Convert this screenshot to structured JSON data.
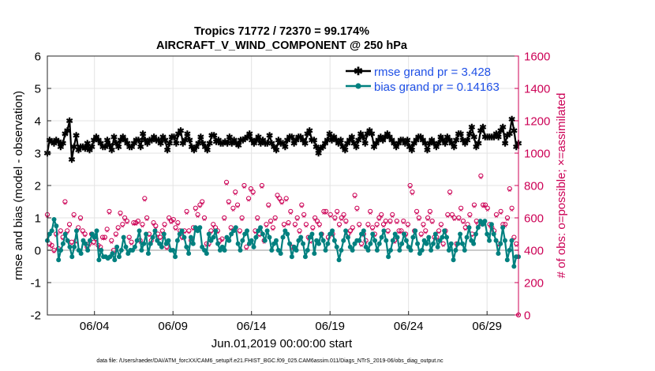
{
  "chart_data": {
    "type": "line",
    "title_line1": "Tropics 71772 / 72370 = 99.174%",
    "title_line2": "AIRCRAFT_V_WIND_COMPONENT @ 250 hPa",
    "ylabel_left": "rmse and bias (model - observation)",
    "ylabel_right": "# of obs: o=possible; ×=assimilated",
    "xlabel": "Jun.01,2019 00:00:00 start",
    "footnote": "data file: /Users/raeder/DAI/ATM_forcXX/CAM6_setup/f.e21.FHIST_BGC.f09_025.CAM6assim.011/Diags_NTrS_2019-06/obs_diag_output.nc",
    "ylim_left": [
      -2,
      6
    ],
    "ylim_right": [
      0,
      1600
    ],
    "xlim_days": [
      0,
      30
    ],
    "yticks_left": [
      "-2",
      "-1",
      "0",
      "1",
      "2",
      "3",
      "4",
      "5",
      "6"
    ],
    "yticks_right": [
      "0",
      "200",
      "400",
      "600",
      "800",
      "1000",
      "1200",
      "1400",
      "1600"
    ],
    "xticks": [
      {
        "day": 3,
        "label": "06/04"
      },
      {
        "day": 8,
        "label": "06/09"
      },
      {
        "day": 13,
        "label": "06/14"
      },
      {
        "day": 18,
        "label": "06/19"
      },
      {
        "day": 23,
        "label": "06/24"
      },
      {
        "day": 28,
        "label": "06/29"
      }
    ],
    "legend": [
      "rmse grand pr = 3.428",
      "bias grand pr = 0.14163"
    ],
    "colors": {
      "rmse": "#000000",
      "bias": "#00807f",
      "obs": "#cc0055",
      "legend_text": "#1f50e6",
      "zero_line": "#bbbbbb",
      "grid": "#e3e3e3"
    },
    "series": [
      {
        "name": "rmse",
        "values": [
          3.0,
          3.4,
          3.35,
          3.3,
          3.4,
          3.35,
          3.2,
          3.3,
          3.6,
          3.7,
          4.0,
          2.8,
          3.2,
          3.55,
          3.1,
          3.2,
          3.2,
          3.15,
          3.3,
          3.1,
          3.2,
          3.4,
          3.5,
          3.4,
          3.3,
          3.2,
          3.2,
          3.4,
          3.25,
          3.1,
          3.5,
          3.3,
          3.2,
          3.4,
          3.5,
          3.4,
          3.3,
          3.2,
          3.2,
          3.3,
          3.4,
          3.4,
          3.2,
          3.6,
          3.4,
          3.3,
          3.4,
          3.4,
          3.5,
          3.4,
          3.4,
          3.3,
          3.5,
          3.4,
          3.1,
          3.3,
          3.5,
          3.5,
          3.3,
          3.6,
          3.7,
          3.3,
          3.4,
          3.6,
          3.4,
          3.2,
          3.1,
          3.2,
          3.3,
          3.5,
          3.3,
          3.2,
          3.1,
          3.3,
          3.55,
          3.55,
          3.35,
          3.4,
          3.3,
          3.3,
          3.35,
          3.3,
          3.5,
          3.3,
          3.4,
          3.3,
          3.25,
          3.4,
          3.4,
          3.45,
          3.5,
          3.6,
          3.4,
          3.3,
          3.4,
          3.5,
          3.3,
          3.4,
          3.3,
          3.3,
          3.55,
          3.3,
          3.2,
          3.1,
          3.4,
          3.3,
          3.3,
          3.2,
          3.4,
          3.5,
          3.5,
          3.3,
          3.4,
          3.5,
          3.5,
          3.4,
          3.3,
          3.6,
          3.7,
          3.4,
          3.4,
          3.2,
          3.0,
          3.15,
          3.2,
          3.3,
          3.4,
          3.6,
          3.4,
          3.5,
          3.4,
          3.3,
          3.4,
          3.2,
          3.1,
          3.3,
          3.4,
          3.5,
          3.3,
          3.2,
          3.4,
          3.6,
          3.5,
          3.3,
          3.6,
          3.7,
          3.6,
          3.2,
          3.3,
          3.4,
          3.5,
          3.4,
          3.5,
          3.6,
          3.5,
          3.4,
          3.3,
          3.2,
          3.3,
          3.4,
          3.4,
          3.3,
          3.4,
          3.2,
          3.1,
          3.3,
          3.4,
          3.5,
          3.5,
          3.4,
          3.3,
          3.1,
          3.3,
          3.4,
          3.3,
          3.2,
          3.3,
          3.5,
          3.4,
          3.3,
          3.5,
          3.4,
          3.3,
          3.2,
          3.4,
          3.6,
          3.6,
          3.4,
          3.3,
          3.4,
          3.6,
          3.8,
          3.5,
          3.2,
          3.3,
          3.7,
          3.8,
          3.5,
          3.5,
          3.5,
          3.5,
          3.5,
          3.6,
          3.5,
          3.7,
          3.8,
          3.3,
          3.55,
          3.6,
          4.05,
          3.7,
          3.2,
          3.3
        ]
      },
      {
        "name": "bias",
        "values": [
          0.3,
          0.5,
          0.6,
          0.95,
          0.75,
          -0.3,
          0.0,
          0.2,
          0.5,
          0.3,
          0.1,
          -0.2,
          0.1,
          0.6,
          0.0,
          -0.1,
          0.3,
          0.2,
          0.0,
          0.3,
          0.5,
          0.4,
          0.6,
          -0.3,
          0.0,
          -0.2,
          -0.2,
          -0.25,
          -0.2,
          -0.1,
          -0.3,
          0.1,
          -0.2,
          0.0,
          0.4,
          0.1,
          -0.1,
          0.0,
          0.0,
          0.1,
          0.3,
          0.6,
          0.0,
          0.2,
          0.5,
          -0.1,
          0.2,
          0.4,
          0.6,
          0.3,
          0.2,
          0.1,
          0.5,
          0.2,
          0.3,
          0.0,
          0.0,
          -0.2,
          0.3,
          0.5,
          0.6,
          0.4,
          0.1,
          -0.1,
          0.4,
          0.2,
          0.7,
          0.6,
          0.7,
          0.1,
          0.0,
          -0.1,
          0.5,
          0.3,
          0.4,
          0.6,
          0.2,
          0.0,
          0.1,
          0.0,
          0.4,
          0.3,
          0.5,
          0.6,
          0.7,
          0.2,
          0.0,
          0.3,
          0.5,
          0.6,
          0.2,
          0.3,
          0.1,
          0.4,
          0.6,
          0.7,
          0.5,
          0.3,
          0.6,
          0.4,
          0.0,
          0.2,
          0.3,
          0.0,
          -0.1,
          0.4,
          0.6,
          0.5,
          0.2,
          -0.2,
          0.1,
          0.0,
          0.3,
          0.4,
          0.2,
          -0.2,
          0.0,
          0.4,
          0.5,
          -0.1,
          0.3,
          0.2,
          0.5,
          0.3,
          0.0,
          0.2,
          0.5,
          0.6,
          0.3,
          0.1,
          -0.3,
          0.0,
          0.3,
          0.6,
          0.4,
          0.1,
          0.0,
          0.2,
          0.3,
          0.3,
          0.5,
          0.6,
          0.1,
          0.0,
          0.2,
          0.5,
          0.3,
          0.0,
          0.2,
          0.4,
          0.6,
          0.3,
          -0.2,
          0.0,
          0.3,
          0.5,
          0.4,
          0.0,
          0.2,
          0.5,
          0.3,
          0.1,
          0.0,
          0.4,
          0.6,
          0.2,
          -0.1,
          0.0,
          0.3,
          0.2,
          0.4,
          0.0,
          0.2,
          0.5,
          0.1,
          0.3,
          0.4,
          0.6,
          0.4,
          0.0,
          0.2,
          -0.3,
          0.0,
          0.2,
          0.5,
          0.2,
          0.0,
          0.4,
          0.7,
          0.3,
          0.2,
          0.5,
          0.7,
          0.9,
          0.8,
          0.9,
          0.5,
          0.3,
          0.8,
          0.5,
          0.3,
          -0.1,
          0.2,
          0.7,
          0.3,
          -0.3,
          0.0,
          0.3,
          -0.5,
          -0.2,
          -0.2
        ]
      },
      {
        "name": "obs_possible",
        "values": [
          620,
          440,
          430,
          400,
          500,
          410,
          520,
          480,
          700,
          520,
          560,
          450,
          620,
          460,
          540,
          600,
          520,
          500,
          420,
          440,
          500,
          450,
          470,
          430,
          420,
          480,
          480,
          530,
          640,
          460,
          400,
          500,
          540,
          630,
          560,
          600,
          580,
          480,
          450,
          570,
          570,
          580,
          460,
          560,
          720,
          600,
          500,
          460,
          570,
          550,
          500,
          480,
          520,
          560,
          420,
          600,
          580,
          590,
          540,
          570,
          520,
          480,
          520,
          640,
          520,
          460,
          540,
          660,
          620,
          680,
          700,
          600,
          440,
          440,
          520,
          560,
          540,
          520,
          460,
          470,
          600,
          820,
          700,
          540,
          660,
          760,
          680,
          520,
          600,
          800,
          420,
          720,
          780,
          760,
          520,
          600,
          500,
          800,
          460,
          560,
          680,
          580,
          540,
          600,
          740,
          720,
          700,
          560,
          720,
          570,
          640,
          420,
          560,
          600,
          520,
          680,
          620,
          560,
          480,
          460,
          540,
          600,
          580,
          560,
          500,
          640,
          640,
          480,
          620,
          500,
          600,
          640,
          560,
          600,
          620,
          580,
          500,
          520,
          540,
          740,
          660,
          560,
          440,
          500,
          460,
          560,
          640,
          540,
          500,
          560,
          600,
          620,
          560,
          580,
          520,
          580,
          620,
          460,
          580,
          520,
          520,
          580,
          500,
          560,
          800,
          760,
          520,
          640,
          600,
          500,
          560,
          520,
          600,
          640,
          580,
          480,
          480,
          520,
          560,
          440,
          520,
          620,
          760,
          620,
          600,
          440,
          600,
          660,
          580,
          540,
          560,
          620,
          500,
          680,
          580,
          560,
          860,
          680,
          680,
          660,
          560,
          540,
          520,
          620,
          440,
          640,
          560,
          560,
          600,
          780,
          660,
          480,
          440,
          0
        ]
      },
      {
        "name": "obs_assimilated",
        "values": [
          610,
          430,
          420,
          390,
          490,
          400,
          510,
          470,
          690,
          510,
          550,
          440,
          610,
          450,
          530,
          590,
          510,
          490,
          410,
          430,
          490,
          440,
          460,
          420,
          410,
          470,
          470,
          520,
          630,
          450,
          390,
          490,
          530,
          620,
          550,
          590,
          570,
          470,
          440,
          560,
          560,
          570,
          450,
          550,
          710,
          590,
          490,
          450,
          560,
          540,
          490,
          470,
          510,
          550,
          410,
          590,
          570,
          580,
          530,
          560,
          510,
          470,
          510,
          630,
          510,
          450,
          530,
          650,
          610,
          670,
          690,
          590,
          430,
          430,
          510,
          550,
          530,
          510,
          450,
          460,
          590,
          810,
          690,
          530,
          650,
          750,
          670,
          510,
          590,
          790,
          410,
          710,
          770,
          750,
          510,
          590,
          490,
          790,
          450,
          550,
          670,
          570,
          530,
          590,
          730,
          710,
          690,
          550,
          710,
          560,
          630,
          410,
          550,
          590,
          510,
          670,
          610,
          550,
          470,
          450,
          530,
          590,
          570,
          550,
          490,
          630,
          630,
          470,
          610,
          490,
          590,
          630,
          550,
          590,
          610,
          570,
          490,
          510,
          530,
          730,
          650,
          550,
          430,
          490,
          450,
          550,
          630,
          530,
          490,
          550,
          590,
          610,
          550,
          570,
          510,
          570,
          610,
          450,
          570,
          510,
          510,
          570,
          490,
          550,
          790,
          750,
          510,
          630,
          590,
          490,
          550,
          510,
          590,
          630,
          570,
          470,
          470,
          510,
          550,
          430,
          510,
          610,
          750,
          610,
          590,
          430,
          590,
          650,
          570,
          530,
          550,
          610,
          490,
          670,
          570,
          550,
          850,
          670,
          670,
          650,
          550,
          530,
          510,
          610,
          430,
          630,
          550,
          550,
          590,
          770,
          650,
          470,
          430,
          0
        ]
      }
    ]
  }
}
